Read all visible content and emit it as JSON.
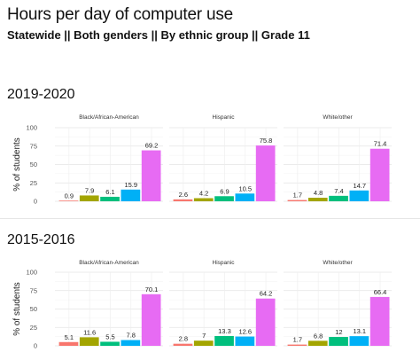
{
  "title": "Hours per day of computer use",
  "subtitle": "Statewide || Both genders || By ethnic group || Grade 11",
  "chart_data": [
    {
      "type": "bar",
      "title": "2019-2020",
      "ylabel": "% of students",
      "ylim": [
        0,
        100
      ],
      "yticks": [
        "0",
        "25",
        "50",
        "75",
        "100"
      ],
      "grid": true,
      "bar_colors": [
        "#F8766D",
        "#A3A500",
        "#00BF7D",
        "#00B0F6",
        "#E76BF3"
      ],
      "facets": [
        {
          "name": "Black/African-American",
          "values": [
            0.9,
            7.9,
            6.1,
            15.9,
            69.2
          ],
          "labels": [
            "0.9",
            "7.9",
            "6.1",
            "15.9",
            "69.2"
          ]
        },
        {
          "name": "Hispanic",
          "values": [
            2.6,
            4.2,
            6.9,
            10.5,
            75.8
          ],
          "labels": [
            "2.6",
            "4.2",
            "6.9",
            "10.5",
            "75.8"
          ]
        },
        {
          "name": "White/other",
          "values": [
            1.7,
            4.8,
            7.4,
            14.7,
            71.4
          ],
          "labels": [
            "1.7",
            "4.8",
            "7.4",
            "14.7",
            "71.4"
          ]
        }
      ]
    },
    {
      "type": "bar",
      "title": "2015-2016",
      "ylabel": "% of students",
      "ylim": [
        0,
        100
      ],
      "yticks": [
        "0",
        "25",
        "50",
        "75",
        "100"
      ],
      "grid": true,
      "bar_colors": [
        "#F8766D",
        "#A3A500",
        "#00BF7D",
        "#00B0F6",
        "#E76BF3"
      ],
      "facets": [
        {
          "name": "Black/African-American",
          "values": [
            5.1,
            11.6,
            5.5,
            7.8,
            70.1
          ],
          "labels": [
            "5.1",
            "11.6",
            "5.5",
            "7.8",
            "70.1"
          ]
        },
        {
          "name": "Hispanic",
          "values": [
            2.8,
            7,
            13.3,
            12.6,
            64.2
          ],
          "labels": [
            "2.8",
            "7",
            "13.3",
            "12.6",
            "64.2"
          ]
        },
        {
          "name": "White/other",
          "values": [
            1.7,
            6.8,
            12,
            13.1,
            66.4
          ],
          "labels": [
            "1.7",
            "6.8",
            "12",
            "13.1",
            "66.4"
          ]
        }
      ]
    }
  ]
}
